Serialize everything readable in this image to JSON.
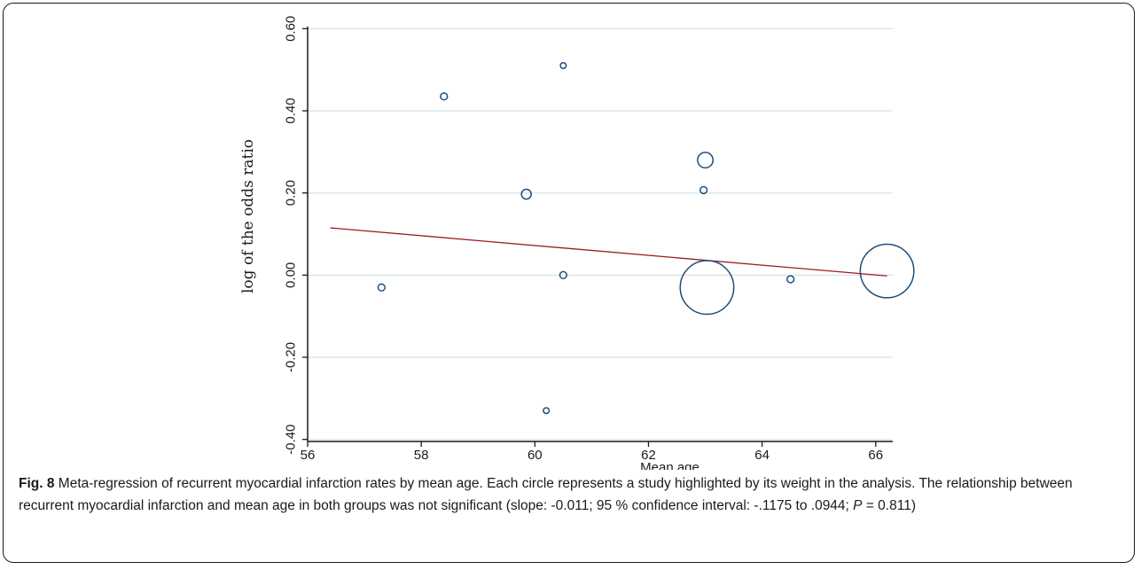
{
  "caption": {
    "label": "Fig. 8",
    "text_before_p": " Meta-regression of recurrent myocardial infarction rates by mean age. Each circle represents a study highlighted by its weight in the analysis. The relationship between recurrent myocardial infarction and mean age in both groups was not significant (slope: -0.011; 95 % confidence interval: -.1175 to .0944; ",
    "p_symbol": "P",
    "text_after_p": " = 0.811)"
  },
  "chart_data": {
    "type": "scatter",
    "title": "",
    "xlabel": "Mean age",
    "ylabel": "log of the odds ratio",
    "xlim": [
      56,
      66.3
    ],
    "ylim": [
      -0.405,
      0.605
    ],
    "x_ticks": [
      56,
      58,
      60,
      62,
      64,
      66
    ],
    "x_tick_labels": [
      "56",
      "58",
      "60",
      "62",
      "64",
      "66"
    ],
    "y_ticks": [
      -0.4,
      -0.2,
      0.0,
      0.2,
      0.4,
      0.6
    ],
    "y_tick_labels": [
      "-0.40",
      "-0.20",
      "0.00",
      "0.20",
      "0.40",
      "0.60"
    ],
    "grid": "horizontal",
    "bubble_size_meaning": "study weight",
    "points": [
      {
        "x": 57.3,
        "y": -0.03,
        "weight": 1.0
      },
      {
        "x": 58.4,
        "y": 0.435,
        "weight": 1.0
      },
      {
        "x": 59.85,
        "y": 0.197,
        "weight": 2.0
      },
      {
        "x": 60.2,
        "y": -0.33,
        "weight": 0.7
      },
      {
        "x": 60.5,
        "y": 0.51,
        "weight": 0.7
      },
      {
        "x": 60.5,
        "y": 0.0,
        "weight": 1.0
      },
      {
        "x": 63.0,
        "y": 0.28,
        "weight": 5.0
      },
      {
        "x": 62.97,
        "y": 0.207,
        "weight": 1.0
      },
      {
        "x": 63.03,
        "y": -0.03,
        "weight": 60.0
      },
      {
        "x": 64.5,
        "y": -0.01,
        "weight": 1.0
      },
      {
        "x": 66.2,
        "y": 0.01,
        "weight": 60.0
      }
    ],
    "regression_line": {
      "x": [
        56.4,
        66.2
      ],
      "y": [
        0.115,
        -0.002
      ]
    },
    "colors": {
      "points": "#1f4e79",
      "regression_line": "#9b1c20",
      "grid": "#cfe3e6",
      "axis": "#1a1a1a"
    }
  }
}
